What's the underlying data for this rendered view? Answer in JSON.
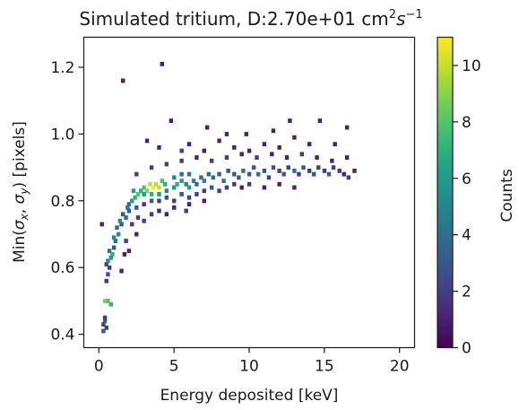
{
  "chart_data": {
    "type": "heatmap",
    "title": "Simulated tritium, D:2.70e+01 cm",
    "title_sup1": "2",
    "title_mid": "s",
    "title_sup2": "−1",
    "xlabel": "Energy deposited [keV]",
    "ylabel_pre": "Min(",
    "ylabel_sx": "σ",
    "ylabel_sub_x": "x",
    "ylabel_sep": ", ",
    "ylabel_sy": "σ",
    "ylabel_sub_y": "y",
    "ylabel_post": ") [pixels]",
    "xlim": [
      -1,
      21
    ],
    "ylim": [
      0.36,
      1.29
    ],
    "xticks": [
      0,
      5,
      10,
      15,
      20
    ],
    "xtick_labels": [
      "0",
      "5",
      "10",
      "15",
      "20"
    ],
    "yticks": [
      0.4,
      0.6,
      0.8,
      1.0,
      1.2
    ],
    "ytick_labels": [
      "0.4",
      "0.6",
      "0.8",
      "1.0",
      "1.2"
    ],
    "bin_width_x": 0.25,
    "bin_height_y": 0.0125,
    "colorbar": {
      "label": "Counts",
      "range": [
        0,
        11
      ],
      "ticks": [
        0,
        2,
        4,
        6,
        8,
        10
      ],
      "tick_labels": [
        "0",
        "2",
        "4",
        "6",
        "8",
        "10"
      ],
      "colormap": "viridis"
    },
    "grid": false,
    "legend": "none",
    "cells": [
      [
        0.3,
        0.41,
        3
      ],
      [
        0.3,
        0.43,
        2
      ],
      [
        0.5,
        0.42,
        2
      ],
      [
        0.4,
        0.44,
        3
      ],
      [
        0.4,
        0.45,
        2
      ],
      [
        0.4,
        0.5,
        9
      ],
      [
        0.6,
        0.5,
        8
      ],
      [
        0.8,
        0.49,
        7
      ],
      [
        0.5,
        0.56,
        2
      ],
      [
        0.6,
        0.58,
        3
      ],
      [
        0.5,
        0.61,
        2
      ],
      [
        0.7,
        0.6,
        2
      ],
      [
        0.6,
        0.62,
        5
      ],
      [
        0.8,
        0.63,
        6
      ],
      [
        0.9,
        0.64,
        7
      ],
      [
        0.7,
        0.65,
        4
      ],
      [
        1.0,
        0.66,
        3
      ],
      [
        1.1,
        0.68,
        4
      ],
      [
        1.0,
        0.69,
        5
      ],
      [
        1.3,
        0.7,
        5
      ],
      [
        1.2,
        0.72,
        4
      ],
      [
        1.5,
        0.73,
        3
      ],
      [
        1.4,
        0.74,
        5
      ],
      [
        1.6,
        0.76,
        3
      ],
      [
        1.8,
        0.75,
        4
      ],
      [
        1.9,
        0.78,
        5
      ],
      [
        2.0,
        0.79,
        4
      ],
      [
        2.2,
        0.8,
        6
      ],
      [
        2.4,
        0.81,
        7
      ],
      [
        2.3,
        0.83,
        6
      ],
      [
        2.6,
        0.82,
        8
      ],
      [
        2.8,
        0.83,
        7
      ],
      [
        3.0,
        0.84,
        8
      ],
      [
        3.2,
        0.83,
        9
      ],
      [
        3.4,
        0.85,
        10
      ],
      [
        3.6,
        0.84,
        11
      ],
      [
        3.8,
        0.85,
        10
      ],
      [
        4.0,
        0.84,
        10
      ],
      [
        4.2,
        0.86,
        8
      ],
      [
        4.4,
        0.85,
        7
      ],
      [
        3.0,
        0.82,
        6
      ],
      [
        3.5,
        0.82,
        7
      ],
      [
        4.0,
        0.82,
        6
      ],
      [
        4.5,
        0.83,
        5
      ],
      [
        5.0,
        0.84,
        6
      ],
      [
        5.2,
        0.85,
        7
      ],
      [
        5.5,
        0.86,
        6
      ],
      [
        5.8,
        0.85,
        5
      ],
      [
        6.0,
        0.84,
        6
      ],
      [
        6.3,
        0.86,
        5
      ],
      [
        6.5,
        0.85,
        4
      ],
      [
        5.0,
        0.87,
        5
      ],
      [
        5.5,
        0.88,
        4
      ],
      [
        6.0,
        0.88,
        4
      ],
      [
        6.8,
        0.87,
        4
      ],
      [
        7.0,
        0.86,
        5
      ],
      [
        7.3,
        0.88,
        4
      ],
      [
        7.6,
        0.87,
        4
      ],
      [
        8.0,
        0.88,
        3
      ],
      [
        8.3,
        0.86,
        4
      ],
      [
        8.6,
        0.89,
        3
      ],
      [
        9.0,
        0.88,
        3
      ],
      [
        9.3,
        0.87,
        3
      ],
      [
        9.6,
        0.89,
        4
      ],
      [
        10.0,
        0.88,
        3
      ],
      [
        10.3,
        0.9,
        3
      ],
      [
        10.6,
        0.88,
        4
      ],
      [
        11.0,
        0.89,
        3
      ],
      [
        11.3,
        0.87,
        2
      ],
      [
        11.6,
        0.9,
        3
      ],
      [
        12.0,
        0.89,
        2
      ],
      [
        12.3,
        0.88,
        3
      ],
      [
        12.6,
        0.9,
        2
      ],
      [
        13.0,
        0.89,
        4
      ],
      [
        13.3,
        0.88,
        2
      ],
      [
        13.6,
        0.9,
        3
      ],
      [
        14.0,
        0.89,
        2
      ],
      [
        14.3,
        0.88,
        3
      ],
      [
        14.6,
        0.9,
        2
      ],
      [
        15.0,
        0.89,
        2
      ],
      [
        15.3,
        0.88,
        3
      ],
      [
        15.6,
        0.9,
        2
      ],
      [
        16.0,
        0.89,
        2
      ],
      [
        16.3,
        0.88,
        1
      ],
      [
        16.6,
        0.87,
        2
      ],
      [
        17.0,
        0.89,
        1
      ],
      [
        2.0,
        0.77,
        3
      ],
      [
        2.5,
        0.78,
        3
      ],
      [
        3.0,
        0.79,
        2
      ],
      [
        3.5,
        0.8,
        3
      ],
      [
        4.0,
        0.8,
        2
      ],
      [
        4.5,
        0.81,
        3
      ],
      [
        5.0,
        0.8,
        2
      ],
      [
        5.5,
        0.82,
        3
      ],
      [
        6.0,
        0.81,
        2
      ],
      [
        6.5,
        0.82,
        2
      ],
      [
        7.0,
        0.83,
        2
      ],
      [
        7.5,
        0.84,
        3
      ],
      [
        8.0,
        0.83,
        2
      ],
      [
        8.5,
        0.84,
        2
      ],
      [
        9.0,
        0.85,
        2
      ],
      [
        9.5,
        0.84,
        1
      ],
      [
        10.0,
        0.85,
        2
      ],
      [
        11.0,
        0.84,
        1
      ],
      [
        12.0,
        0.85,
        1
      ],
      [
        13.0,
        0.84,
        1
      ],
      [
        2.5,
        0.88,
        2
      ],
      [
        3.5,
        0.9,
        2
      ],
      [
        4.5,
        0.91,
        2
      ],
      [
        5.5,
        0.92,
        2
      ],
      [
        6.5,
        0.93,
        1
      ],
      [
        7.5,
        0.92,
        2
      ],
      [
        8.5,
        0.93,
        2
      ],
      [
        9.5,
        0.94,
        1
      ],
      [
        10.5,
        0.93,
        2
      ],
      [
        11.5,
        0.94,
        1
      ],
      [
        12.5,
        0.93,
        1
      ],
      [
        13.5,
        0.94,
        2
      ],
      [
        14.5,
        0.93,
        1
      ],
      [
        15.5,
        0.92,
        1
      ],
      [
        16.5,
        0.93,
        1
      ],
      [
        4.0,
        0.96,
        1
      ],
      [
        6.0,
        0.97,
        1
      ],
      [
        8.0,
        0.98,
        1
      ],
      [
        9.0,
        0.96,
        1
      ],
      [
        11.0,
        0.97,
        1
      ],
      [
        12.0,
        0.96,
        1
      ],
      [
        14.0,
        0.97,
        1
      ],
      [
        5.5,
        0.95,
        2
      ],
      [
        7.0,
        0.95,
        1
      ],
      [
        10.0,
        0.95,
        1
      ],
      [
        1.5,
        0.59,
        1
      ],
      [
        2.0,
        0.65,
        1
      ],
      [
        1.8,
        0.68,
        2
      ],
      [
        2.5,
        0.7,
        1
      ],
      [
        3.0,
        0.74,
        2
      ],
      [
        3.5,
        0.76,
        2
      ],
      [
        4.0,
        0.77,
        1
      ],
      [
        5.0,
        0.78,
        1
      ],
      [
        6.0,
        0.79,
        1
      ],
      [
        2.2,
        0.73,
        2
      ],
      [
        1.7,
        0.64,
        1
      ],
      [
        2.6,
        0.75,
        2
      ],
      [
        4.5,
        0.76,
        1
      ],
      [
        5.8,
        0.77,
        2
      ],
      [
        7.0,
        0.8,
        1
      ],
      [
        0.2,
        0.73,
        1
      ],
      [
        1.6,
        1.16,
        1
      ],
      [
        4.2,
        1.21,
        1
      ],
      [
        4.8,
        1.04,
        1
      ],
      [
        7.2,
        1.02,
        1
      ],
      [
        8.5,
        1.0,
        1
      ],
      [
        9.8,
        1.0,
        1
      ],
      [
        11.6,
        1.01,
        1
      ],
      [
        12.7,
        1.04,
        1
      ],
      [
        14.7,
        1.04,
        1
      ],
      [
        16.5,
        1.02,
        1
      ],
      [
        3.2,
        0.98,
        1
      ],
      [
        13.0,
        0.99,
        1
      ],
      [
        15.7,
        0.97,
        1
      ]
    ]
  }
}
